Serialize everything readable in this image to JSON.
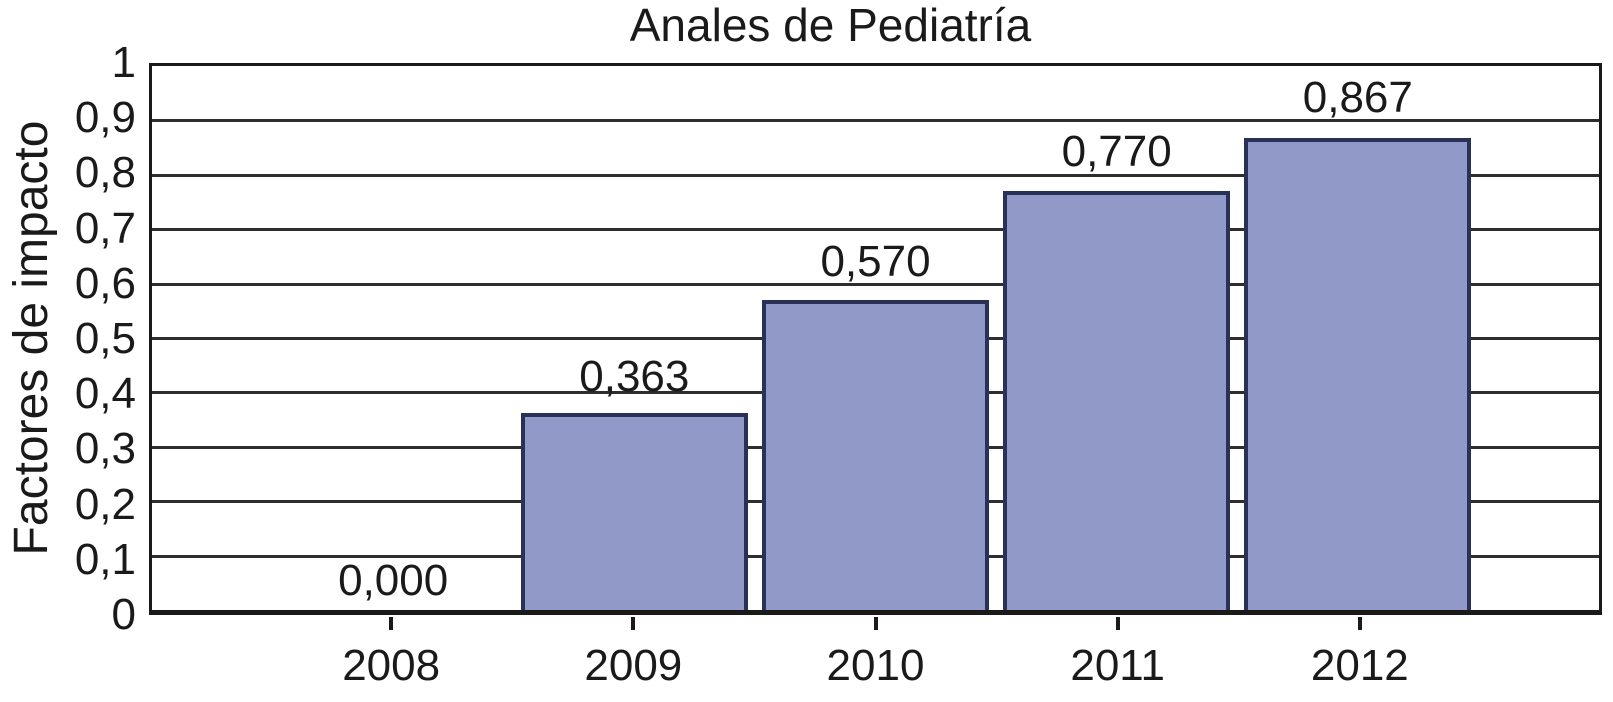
{
  "chart_data": {
    "type": "bar",
    "title": "Anales de Pediatría",
    "ylabel": "Factores de impacto",
    "xlabel": "",
    "categories": [
      "2008",
      "2009",
      "2010",
      "2011",
      "2012"
    ],
    "values": [
      0.0,
      0.363,
      0.57,
      0.77,
      0.867
    ],
    "value_labels": [
      "0,000",
      "0,363",
      "0,570",
      "0,770",
      "0,867"
    ],
    "ylim": [
      0,
      1
    ],
    "ytick_values": [
      0,
      0.1,
      0.2,
      0.3,
      0.4,
      0.5,
      0.6,
      0.7,
      0.8,
      0.9,
      1
    ],
    "ytick_labels": [
      "0",
      "0,1",
      "0,2",
      "0,3",
      "0,4",
      "0,5",
      "0,6",
      "0,7",
      "0,8",
      "0,9",
      "1"
    ],
    "grid": "horizontal",
    "legend_position": "none",
    "colors": {
      "bar_fill": "#9199c9",
      "bar_border": "#2a3156",
      "gridline": "#2e2e2e",
      "plot_border": "#1a1a1a",
      "text": "#1a1a1a",
      "background": "#ffffff"
    }
  }
}
